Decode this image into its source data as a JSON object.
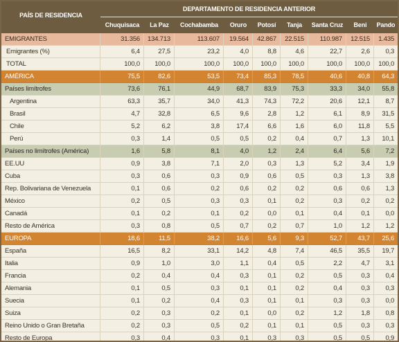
{
  "table": {
    "row_header": "PAÍS DE RESIDENCIA",
    "group_header": "DEPARTAMENTO DE RESIDENCIA ANTERIOR",
    "columns": [
      "Chuquisaca",
      "La Paz",
      "Cochabamba",
      "Oruro",
      "Potosí",
      "Tanja",
      "Santa Cruz",
      "Beni",
      "Pando"
    ],
    "rows": [
      {
        "label": "EMIGRANTES",
        "kind": "emigrants",
        "values": [
          "31.356",
          "134.713",
          "113.607",
          "19.564",
          "42.867",
          "22.515",
          "110.987",
          "12.515",
          "1.435"
        ]
      },
      {
        "label": "Emigrantes (%)",
        "kind": "plain",
        "values": [
          "6,4",
          "27,5",
          "23,2",
          "4,0",
          "8,8",
          "4,6",
          "22,7",
          "2,6",
          "0,3"
        ]
      },
      {
        "label": "TOTAL",
        "kind": "plain",
        "values": [
          "100,0",
          "100,0",
          "100,0",
          "100,0",
          "100,0",
          "100,0",
          "100,0",
          "100,0",
          "100,0"
        ]
      },
      {
        "label": "AMÉRICA",
        "kind": "region",
        "values": [
          "75,5",
          "82,6",
          "53,5",
          "73,4",
          "85,3",
          "78,5",
          "40,6",
          "40,8",
          "64,3"
        ]
      },
      {
        "label": "Países limítrofes",
        "kind": "subregion",
        "values": [
          "73,6",
          "76,1",
          "44,9",
          "68,7",
          "83,9",
          "75,3",
          "33,3",
          "34,0",
          "55,8"
        ]
      },
      {
        "label": "Argentina",
        "kind": "indent",
        "values": [
          "63,3",
          "35,7",
          "34,0",
          "41,3",
          "74,3",
          "72,2",
          "20,6",
          "12,1",
          "8,7"
        ]
      },
      {
        "label": "Brasil",
        "kind": "indent",
        "values": [
          "4,7",
          "32,8",
          "6,5",
          "9,6",
          "2,8",
          "1,2",
          "6,1",
          "8,9",
          "31,5"
        ]
      },
      {
        "label": "Chile",
        "kind": "indent",
        "values": [
          "5,2",
          "6,2",
          "3,8",
          "17,4",
          "6,6",
          "1,6",
          "6,0",
          "11,8",
          "5,5"
        ]
      },
      {
        "label": "Perú",
        "kind": "indent",
        "values": [
          "0,3",
          "1,4",
          "0,5",
          "0,5",
          "0,2",
          "0,4",
          "0,7",
          "1,3",
          "10,1"
        ]
      },
      {
        "label": "Países no limítrofes (América)",
        "kind": "subregion",
        "values": [
          "1,6",
          "5,8",
          "8,1",
          "4,0",
          "1,2",
          "2,4",
          "6,4",
          "5,6",
          "7,2"
        ]
      },
      {
        "label": "EE.UU",
        "kind": "item",
        "values": [
          "0,9",
          "3,8",
          "7,1",
          "2,0",
          "0,3",
          "1,3",
          "5,2",
          "3,4",
          "1,9"
        ]
      },
      {
        "label": "Cuba",
        "kind": "item",
        "values": [
          "0,3",
          "0,6",
          "0,3",
          "0,9",
          "0,6",
          "0,5",
          "0,3",
          "1,3",
          "3,8"
        ]
      },
      {
        "label": "Rep. Bolivariana de Venezuela",
        "kind": "item",
        "values": [
          "0,1",
          "0,6",
          "0,2",
          "0,6",
          "0,2",
          "0,2",
          "0,6",
          "0,6",
          "1,3"
        ]
      },
      {
        "label": "México",
        "kind": "item",
        "values": [
          "0,2",
          "0,5",
          "0,3",
          "0,3",
          "0,1",
          "0,2",
          "0,3",
          "0,2",
          "0,2"
        ]
      },
      {
        "label": "Canadá",
        "kind": "item",
        "values": [
          "0,1",
          "0,2",
          "0,1",
          "0,2",
          "0,0",
          "0,1",
          "0,4",
          "0,1",
          "0,0"
        ]
      },
      {
        "label": "Resto de América",
        "kind": "item",
        "values": [
          "0,3",
          "0,8",
          "0,5",
          "0,7",
          "0,2",
          "0,7",
          "1,0",
          "1,2",
          "1,2"
        ]
      },
      {
        "label": "EUROPA",
        "kind": "region",
        "values": [
          "18,6",
          "11,5",
          "38,2",
          "16,6",
          "5,6",
          "9,3",
          "52,7",
          "43,7",
          "25,6"
        ]
      },
      {
        "label": "España",
        "kind": "item",
        "values": [
          "16,5",
          "8,2",
          "33,1",
          "14,2",
          "4,8",
          "7,4",
          "46,5",
          "35,5",
          "19,7"
        ]
      },
      {
        "label": "Italia",
        "kind": "item",
        "values": [
          "0,9",
          "1,0",
          "3,0",
          "1,1",
          "0,4",
          "0,5",
          "2,2",
          "4,7",
          "3,1"
        ]
      },
      {
        "label": "Francia",
        "kind": "item",
        "values": [
          "0,2",
          "0,4",
          "0,4",
          "0,3",
          "0,1",
          "0,2",
          "0,5",
          "0,3",
          "0,4"
        ]
      },
      {
        "label": "Alemania",
        "kind": "item",
        "values": [
          "0,1",
          "0,5",
          "0,3",
          "0,1",
          "0,1",
          "0,2",
          "0,4",
          "0,3",
          "0,3"
        ]
      },
      {
        "label": "Suecia",
        "kind": "item",
        "values": [
          "0,1",
          "0,2",
          "0,4",
          "0,3",
          "0,1",
          "0,1",
          "0,3",
          "0,3",
          "0,0"
        ]
      },
      {
        "label": "Suiza",
        "kind": "item",
        "values": [
          "0,2",
          "0,3",
          "0,2",
          "0,1",
          "0,0",
          "0,2",
          "1,2",
          "1,8",
          "0,8"
        ]
      },
      {
        "label": "Reino Unido o Gran Bretaña",
        "kind": "item",
        "values": [
          "0,2",
          "0,3",
          "0,5",
          "0,2",
          "0,1",
          "0,1",
          "0,5",
          "0,3",
          "0,3"
        ]
      },
      {
        "label": "Resto de Europa",
        "kind": "item",
        "values": [
          "0,3",
          "0,4",
          "0,3",
          "0,1",
          "0,3",
          "0,3",
          "0,5",
          "0,5",
          "0,9"
        ]
      }
    ]
  },
  "colors": {
    "header": "#6d5c40",
    "emigrants_row": "#e8b99c",
    "region_row": "#d38430",
    "subregion_row": "#c8ccb1",
    "body_row": "#f3efe2",
    "grid_line": "#dad2bb",
    "frame": "#7a6446"
  }
}
